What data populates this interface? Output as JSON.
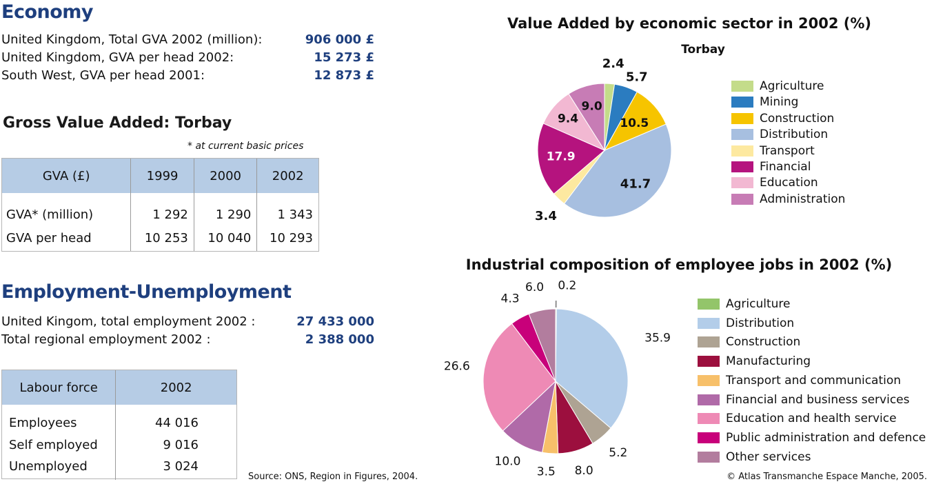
{
  "economy": {
    "title": "Economy",
    "rows": [
      {
        "label": "United Kingdom, Total GVA 2002 (million):",
        "value": "906 000 £"
      },
      {
        "label": "United Kingdom, GVA per head 2002:",
        "value": "15 273 £"
      },
      {
        "label": "South West, GVA per head 2001:",
        "value": "12 873 £"
      }
    ]
  },
  "gva": {
    "title": "Gross Value Added: Torbay",
    "note": "* at current basic prices",
    "headers": [
      "GVA (£)",
      "1999",
      "2000",
      "2002"
    ],
    "rows": [
      [
        "GVA* (million)",
        "1 292",
        "1 290",
        "1 343"
      ],
      [
        "GVA per head",
        "10 253",
        "10 040",
        "10 293"
      ]
    ]
  },
  "employment": {
    "title": "Employment-Unemployment",
    "rows": [
      {
        "label": "United Kingom, total employment 2002 :",
        "value": "27 433 000"
      },
      {
        "label": "Total regional employment 2002 :",
        "value": "2 388 000"
      }
    ]
  },
  "labour": {
    "headers": [
      "Labour force",
      "2002"
    ],
    "rows": [
      [
        "Employees",
        "44 016"
      ],
      [
        "Self employed",
        "9 016"
      ],
      [
        "Unemployed",
        "3 024"
      ]
    ]
  },
  "source": "Source: ONS, Region in Figures, 2004.",
  "copyright": "© Atlas Transmanche Espace Manche, 2005.",
  "chart_data": [
    {
      "type": "pie",
      "title": "Value Added by economic sector in 2002 (%)",
      "subtitle": "Torbay",
      "legend_position": "right",
      "categories": [
        "Agriculture",
        "Mining",
        "Construction",
        "Distribution",
        "Transport",
        "Financial",
        "Education",
        "Administration"
      ],
      "values": [
        2.4,
        5.7,
        10.5,
        41.7,
        3.4,
        17.9,
        9.4,
        9.0
      ],
      "labels": [
        "2.4",
        "5.7",
        "10.5",
        "41.7",
        "3.4",
        "17.9",
        "9.4",
        "9.0"
      ],
      "colors": [
        "#c4dc8a",
        "#2b7cc0",
        "#f6c400",
        "#a7bfe0",
        "#fde9a0",
        "#b5137e",
        "#f2b8d2",
        "#c77cb5"
      ]
    },
    {
      "type": "pie",
      "title": "Industrial composition of employee jobs in 2002 (%)",
      "legend_position": "right",
      "categories": [
        "Agriculture",
        "Distribution",
        "Construction",
        "Manufacturing",
        "Transport and communication",
        "Financial and business services",
        "Education and health service",
        "Public administration and defence",
        "Other services"
      ],
      "legend_order": [
        "Agriculture",
        "Distribution",
        "Construction",
        "Manufacturing",
        "Transport and communication",
        "Financial and business services",
        "Education and health service",
        "Public administration and defence",
        "Other services"
      ],
      "values": [
        0.2,
        35.9,
        5.2,
        8.0,
        3.5,
        10.0,
        26.6,
        4.3,
        6.0
      ],
      "labels": [
        "0.2",
        "35.9",
        "5.2",
        "8.0",
        "3.5",
        "10.0",
        "26.6",
        "4.3",
        "6.0"
      ],
      "colors": [
        "#93c56a",
        "#b3cde9",
        "#aea393",
        "#9c0f3e",
        "#f7c06a",
        "#b06aa8",
        "#ee8ab5",
        "#c8007a",
        "#b27d9e"
      ]
    }
  ]
}
